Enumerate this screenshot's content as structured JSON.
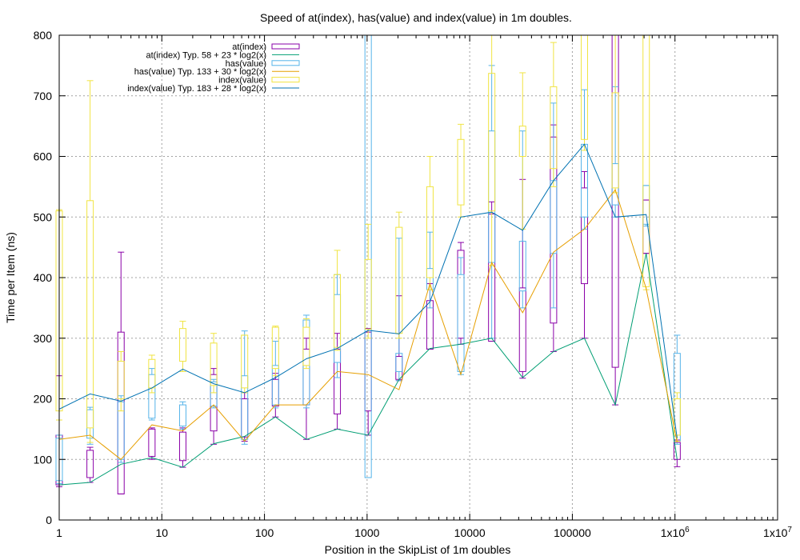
{
  "chart_data": {
    "type": "box+line",
    "title": "Speed of at(index), has(value) and index(value) in 1m doubles.",
    "xlabel": "Position in the SkipList of 1m doubles",
    "ylabel": "Time per Item (ns)",
    "x_scale": "log",
    "xlim": [
      1,
      10000000
    ],
    "ylim": [
      0,
      800
    ],
    "grid": true,
    "legend_position": "top-left",
    "x_ticks": [
      {
        "value": 1,
        "label": "1"
      },
      {
        "value": 10,
        "label": "10"
      },
      {
        "value": 100,
        "label": "100"
      },
      {
        "value": 1000,
        "label": "1000"
      },
      {
        "value": 10000,
        "label": "10000"
      },
      {
        "value": 100000,
        "label": "100000"
      },
      {
        "value": 1000000,
        "label": "1x10",
        "sup": "6"
      },
      {
        "value": 10000000,
        "label": "1x10",
        "sup": "7"
      }
    ],
    "y_ticks": [
      0,
      100,
      200,
      300,
      400,
      500,
      600,
      700,
      800
    ],
    "legend": [
      {
        "label": "at(index)",
        "kind": "box",
        "color": "#8a00a8"
      },
      {
        "label": "at(index) Typ. 58 + 23 * log2(x)",
        "kind": "line",
        "color": "#009e73"
      },
      {
        "label": "has(value)",
        "kind": "box",
        "color": "#56b4e9"
      },
      {
        "label": "has(value) Typ. 133 + 30 * log2(x)",
        "kind": "line",
        "color": "#e69f00"
      },
      {
        "label": "index(value)",
        "kind": "box",
        "color": "#f0e442"
      },
      {
        "label": "index(value) Typ. 183 + 28 * log2(x)",
        "kind": "line",
        "color": "#0072b2"
      }
    ],
    "box_series": [
      {
        "name": "at(index)",
        "color": "#8a00a8",
        "boxes": [
          {
            "x": 1,
            "min": 55,
            "q1": 58,
            "q3": 140,
            "max": 238
          },
          {
            "x": 2,
            "min": 62,
            "q1": 70,
            "q3": 115,
            "max": 120
          },
          {
            "x": 4,
            "min": 43,
            "q1": 43,
            "q3": 310,
            "max": 442
          },
          {
            "x": 8,
            "min": 100,
            "q1": 105,
            "q3": 150,
            "max": 152
          },
          {
            "x": 16,
            "min": 87,
            "q1": 98,
            "q3": 145,
            "max": 152
          },
          {
            "x": 32,
            "min": 125,
            "q1": 147,
            "q3": 240,
            "max": 250
          },
          {
            "x": 64,
            "min": 130,
            "q1": 137,
            "q3": 200,
            "max": 210
          },
          {
            "x": 128,
            "min": 170,
            "q1": 188,
            "q3": 232,
            "max": 242
          },
          {
            "x": 256,
            "min": 133,
            "q1": 190,
            "q3": 282,
            "max": 300
          },
          {
            "x": 512,
            "min": 150,
            "q1": 175,
            "q3": 282,
            "max": 308
          },
          {
            "x": 1024,
            "min": 140,
            "q1": 180,
            "q3": 310,
            "max": 316
          },
          {
            "x": 2048,
            "min": 230,
            "q1": 232,
            "q3": 270,
            "max": 370
          },
          {
            "x": 4096,
            "min": 282,
            "q1": 282,
            "q3": 362,
            "max": 390
          },
          {
            "x": 8192,
            "min": 290,
            "q1": 300,
            "q3": 445,
            "max": 458
          },
          {
            "x": 16384,
            "min": 295,
            "q1": 295,
            "q3": 505,
            "max": 525
          },
          {
            "x": 32768,
            "min": 234,
            "q1": 245,
            "q3": 383,
            "max": 562
          },
          {
            "x": 65536,
            "min": 278,
            "q1": 325,
            "q3": 632,
            "max": 652
          },
          {
            "x": 131072,
            "min": 300,
            "q1": 390,
            "q3": 548,
            "max": 575
          },
          {
            "x": 262144,
            "min": 190,
            "q1": 252,
            "q3": 800,
            "max": 800
          },
          {
            "x": 524288,
            "min": 440,
            "q1": 440,
            "q3": 528,
            "max": 528
          },
          {
            "x": 1048576,
            "min": 88,
            "q1": 100,
            "q3": 128,
            "max": 132
          }
        ]
      },
      {
        "name": "has(value)",
        "color": "#56b4e9",
        "boxes": [
          {
            "x": 1,
            "min": 60,
            "q1": 65,
            "q3": 135,
            "max": 140
          },
          {
            "x": 2,
            "min": 125,
            "q1": 135,
            "q3": 182,
            "max": 186
          },
          {
            "x": 4,
            "min": 95,
            "q1": 100,
            "q3": 195,
            "max": 205
          },
          {
            "x": 8,
            "min": 165,
            "q1": 168,
            "q3": 240,
            "max": 250
          },
          {
            "x": 16,
            "min": 150,
            "q1": 155,
            "q3": 190,
            "max": 195
          },
          {
            "x": 32,
            "min": 185,
            "q1": 188,
            "q3": 228,
            "max": 232
          },
          {
            "x": 64,
            "min": 125,
            "q1": 133,
            "q3": 238,
            "max": 312
          },
          {
            "x": 128,
            "min": 185,
            "q1": 190,
            "q3": 255,
            "max": 295
          },
          {
            "x": 256,
            "min": 185,
            "q1": 190,
            "q3": 330,
            "max": 338
          },
          {
            "x": 512,
            "min": 235,
            "q1": 260,
            "q3": 372,
            "max": 405
          },
          {
            "x": 1024,
            "min": 70,
            "q1": 70,
            "q3": 800,
            "max": 800
          },
          {
            "x": 2048,
            "min": 230,
            "q1": 245,
            "q3": 275,
            "max": 465
          },
          {
            "x": 4096,
            "min": 350,
            "q1": 380,
            "q3": 415,
            "max": 475
          },
          {
            "x": 8192,
            "min": 240,
            "q1": 245,
            "q3": 405,
            "max": 433
          },
          {
            "x": 16384,
            "min": 300,
            "q1": 425,
            "q3": 642,
            "max": 750
          },
          {
            "x": 32768,
            "min": 350,
            "q1": 378,
            "q3": 460,
            "max": 642
          },
          {
            "x": 65536,
            "min": 350,
            "q1": 440,
            "q3": 560,
            "max": 688
          },
          {
            "x": 131072,
            "min": 480,
            "q1": 500,
            "q3": 620,
            "max": 710
          },
          {
            "x": 262144,
            "min": 500,
            "q1": 520,
            "q3": 588,
            "max": 715
          },
          {
            "x": 524288,
            "min": 485,
            "q1": 488,
            "q3": 552,
            "max": 552
          },
          {
            "x": 1048576,
            "min": 125,
            "q1": 130,
            "q3": 275,
            "max": 305
          }
        ]
      },
      {
        "name": "index(value)",
        "color": "#f0e442",
        "boxes": [
          {
            "x": 1,
            "min": 165,
            "q1": 180,
            "q3": 510,
            "max": 512
          },
          {
            "x": 2,
            "min": 128,
            "q1": 152,
            "q3": 527,
            "max": 725
          },
          {
            "x": 4,
            "min": 180,
            "q1": 200,
            "q3": 262,
            "max": 278
          },
          {
            "x": 8,
            "min": 210,
            "q1": 218,
            "q3": 265,
            "max": 272
          },
          {
            "x": 16,
            "min": 245,
            "q1": 262,
            "q3": 316,
            "max": 328
          },
          {
            "x": 32,
            "min": 210,
            "q1": 222,
            "q3": 292,
            "max": 308
          },
          {
            "x": 64,
            "min": 210,
            "q1": 218,
            "q3": 305,
            "max": 305
          },
          {
            "x": 128,
            "min": 238,
            "q1": 250,
            "q3": 318,
            "max": 320
          },
          {
            "x": 256,
            "min": 250,
            "q1": 255,
            "q3": 318,
            "max": 332
          },
          {
            "x": 512,
            "min": 280,
            "q1": 285,
            "q3": 405,
            "max": 445
          },
          {
            "x": 1024,
            "min": 300,
            "q1": 315,
            "q3": 430,
            "max": 488
          },
          {
            "x": 2048,
            "min": 300,
            "q1": 308,
            "q3": 483,
            "max": 508
          },
          {
            "x": 4096,
            "min": 380,
            "q1": 400,
            "q3": 550,
            "max": 600
          },
          {
            "x": 8192,
            "min": 500,
            "q1": 520,
            "q3": 628,
            "max": 653
          },
          {
            "x": 16384,
            "min": 420,
            "q1": 510,
            "q3": 737,
            "max": 800
          },
          {
            "x": 32768,
            "min": 480,
            "q1": 600,
            "q3": 650,
            "max": 738
          },
          {
            "x": 65536,
            "min": 550,
            "q1": 580,
            "q3": 715,
            "max": 788
          },
          {
            "x": 131072,
            "min": 610,
            "q1": 628,
            "q3": 800,
            "max": 800
          },
          {
            "x": 262144,
            "min": 540,
            "q1": 548,
            "q3": 705,
            "max": 800
          },
          {
            "x": 524288,
            "min": 380,
            "q1": 385,
            "q3": 800,
            "max": 800
          },
          {
            "x": 1048576,
            "min": 130,
            "q1": 140,
            "q3": 200,
            "max": 210
          }
        ]
      }
    ],
    "line_series": [
      {
        "name": "at(index) Typ. 58 + 23 * log2(x)",
        "color": "#009e73",
        "points": [
          [
            1,
            58
          ],
          [
            2,
            62
          ],
          [
            4,
            92
          ],
          [
            8,
            103
          ],
          [
            16,
            87
          ],
          [
            32,
            126
          ],
          [
            64,
            138
          ],
          [
            128,
            170
          ],
          [
            256,
            133
          ],
          [
            512,
            150
          ],
          [
            1024,
            140
          ],
          [
            2048,
            232
          ],
          [
            4096,
            283
          ],
          [
            8192,
            290
          ],
          [
            16384,
            300
          ],
          [
            32768,
            235
          ],
          [
            65536,
            278
          ],
          [
            131072,
            300
          ],
          [
            262144,
            190
          ],
          [
            524288,
            440
          ],
          [
            1048576,
            100
          ]
        ]
      },
      {
        "name": "has(value) Typ. 133 + 30 * log2(x)",
        "color": "#e69f00",
        "points": [
          [
            1,
            133
          ],
          [
            2,
            140
          ],
          [
            4,
            100
          ],
          [
            8,
            157
          ],
          [
            16,
            147
          ],
          [
            32,
            190
          ],
          [
            64,
            130
          ],
          [
            128,
            190
          ],
          [
            256,
            190
          ],
          [
            512,
            245
          ],
          [
            1024,
            240
          ],
          [
            2048,
            215
          ],
          [
            4096,
            390
          ],
          [
            8192,
            240
          ],
          [
            16384,
            425
          ],
          [
            32768,
            342
          ],
          [
            65536,
            442
          ],
          [
            131072,
            480
          ],
          [
            262144,
            545
          ],
          [
            524288,
            382
          ],
          [
            1048576,
            128
          ]
        ]
      },
      {
        "name": "index(value) Typ. 183 + 28 * log2(x)",
        "color": "#0072b2",
        "points": [
          [
            1,
            183
          ],
          [
            2,
            208
          ],
          [
            4,
            196
          ],
          [
            8,
            218
          ],
          [
            16,
            249
          ],
          [
            32,
            225
          ],
          [
            64,
            210
          ],
          [
            128,
            235
          ],
          [
            256,
            266
          ],
          [
            512,
            283
          ],
          [
            1024,
            313
          ],
          [
            2048,
            307
          ],
          [
            4096,
            360
          ],
          [
            8192,
            500
          ],
          [
            16384,
            508
          ],
          [
            32768,
            478
          ],
          [
            65536,
            560
          ],
          [
            131072,
            620
          ],
          [
            262144,
            500
          ],
          [
            524288,
            504
          ],
          [
            1048576,
            135
          ]
        ]
      }
    ]
  }
}
